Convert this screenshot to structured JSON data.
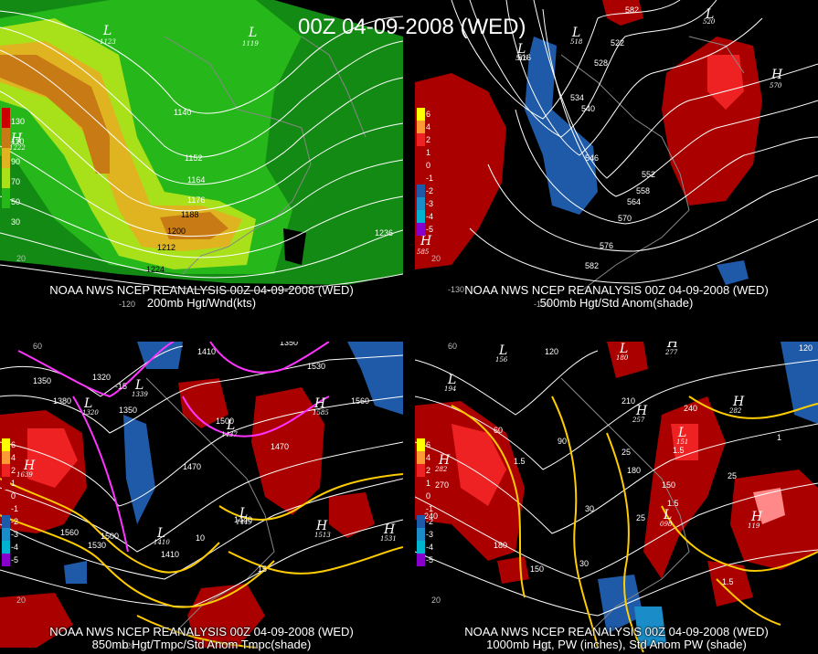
{
  "main_title": "00Z 04-09-2008 (WED)",
  "panels": {
    "p200": {
      "caption_line1": "NOAA NWS NCEP REANALYSIS 00Z 04-09-2008 (WED)",
      "caption_line2": "200mb Hgt/Wnd(kts)",
      "legend": [
        "130",
        "110",
        "90",
        "70",
        "50",
        "30"
      ],
      "legend_colors": [
        "#cc0000",
        "#c87a14",
        "#e0b420",
        "#a8e01a",
        "#26b81a",
        "#138a13"
      ],
      "contours": [
        "1140",
        "1152",
        "1164",
        "1176",
        "1188",
        "1200",
        "1212",
        "1224",
        "1236"
      ],
      "lat_labels": [
        "20"
      ],
      "lon_labels": [
        "-120"
      ],
      "centers": [
        {
          "type": "L",
          "value": "1123"
        },
        {
          "type": "L",
          "value": "1119"
        },
        {
          "type": "H",
          "value": "1222"
        }
      ]
    },
    "p500": {
      "caption_line1": "NOAA NWS NCEP REANALYSIS 00Z 04-09-2008 (WED)",
      "caption_line2": "500mb Hgt/Std Anom(shade)",
      "legend": [
        "6",
        "4",
        "2",
        "1",
        "0",
        "-1",
        "-2",
        "-3",
        "-4",
        "-5"
      ],
      "legend_colors": [
        "#ffff00",
        "#ff9933",
        "#ee2222",
        "#aa0000",
        "#000000",
        "#000000",
        "#1e5aa8",
        "#1a8cc8",
        "#00b4d0",
        "#8800cc"
      ],
      "contours": [
        "534",
        "540",
        "546",
        "552",
        "558",
        "564",
        "570",
        "576",
        "582",
        "516",
        "528",
        "522"
      ],
      "lat_labels": [
        "20"
      ],
      "lon_labels": [
        "-130",
        "-120"
      ],
      "centers": [
        {
          "type": "L",
          "value": "516"
        },
        {
          "type": "L",
          "value": "518"
        },
        {
          "type": "L",
          "value": "520"
        },
        {
          "type": "H",
          "value": "570"
        },
        {
          "type": "H",
          "value": "585"
        }
      ]
    },
    "p850": {
      "caption_line1": "NOAA NWS NCEP REANALYSIS 00Z 04-09-2008 (WED)",
      "caption_line2": "850mb Hgt/Tmpc/Std Anom Tmpc(shade)",
      "legend": [
        "6",
        "4",
        "2",
        "1",
        "0",
        "-1",
        "-2",
        "-3",
        "-4",
        "-5"
      ],
      "legend_colors": [
        "#ffff00",
        "#ff9933",
        "#ee2222",
        "#aa0000",
        "#000000",
        "#000000",
        "#1e5aa8",
        "#1a8cc8",
        "#00b4d0",
        "#8800cc"
      ],
      "contours": [
        "1350",
        "1320",
        "1380",
        "1350",
        "1470",
        "1500",
        "1560",
        "1500",
        "1530",
        "1560",
        "1410",
        "1440",
        "1470",
        "1530",
        "1410",
        "1350"
      ],
      "temps": [
        "-15",
        "10",
        "15"
      ],
      "lat_labels": [
        "20",
        "60"
      ],
      "lon_labels": [
        "-120"
      ],
      "centers": [
        {
          "type": "L",
          "value": "1339"
        },
        {
          "type": "L",
          "value": "1320"
        },
        {
          "type": "L",
          "value": "1437"
        },
        {
          "type": "L",
          "value": "1449"
        },
        {
          "type": "L",
          "value": "1410"
        },
        {
          "type": "H",
          "value": "1585"
        },
        {
          "type": "H",
          "value": "1639"
        },
        {
          "type": "H",
          "value": "1513"
        },
        {
          "type": "H",
          "value": "1531"
        }
      ]
    },
    "p1000": {
      "caption_line1": "NOAA NWS NCEP REANALYSIS 00Z 04-09-2008 (WED)",
      "caption_line2": "1000mb Hgt, PW (inches), Std Anom PW (shade)",
      "legend": [
        "6",
        "4",
        "2",
        "1",
        "0",
        "-1",
        "-2",
        "-3",
        "-4",
        "-5"
      ],
      "legend_colors": [
        "#ffff00",
        "#ff9933",
        "#ee2222",
        "#aa0000",
        "#000000",
        "#000000",
        "#1e5aa8",
        "#1a8cc8",
        "#00b4d0",
        "#8800cc"
      ],
      "contours": [
        "120",
        "210",
        "90",
        "180",
        "150",
        "60",
        "270",
        "240",
        "30",
        "240",
        "180",
        "150",
        "30",
        "120"
      ],
      "pw": [
        "25",
        "1.5",
        "25",
        "1.5",
        "25",
        "1.5",
        "1",
        "1.5"
      ],
      "lat_labels": [
        "20",
        "60"
      ],
      "lon_labels": [
        "-120"
      ],
      "centers": [
        {
          "type": "L",
          "value": "156"
        },
        {
          "type": "L",
          "value": "180"
        },
        {
          "type": "L",
          "value": "194"
        },
        {
          "type": "L",
          "value": "151"
        },
        {
          "type": "L",
          "value": "098"
        },
        {
          "type": "H",
          "value": "257"
        },
        {
          "type": "H",
          "value": "277"
        },
        {
          "type": "H",
          "value": "282"
        },
        {
          "type": "H",
          "value": "119"
        },
        {
          "type": "H",
          "value": "282"
        }
      ]
    }
  }
}
